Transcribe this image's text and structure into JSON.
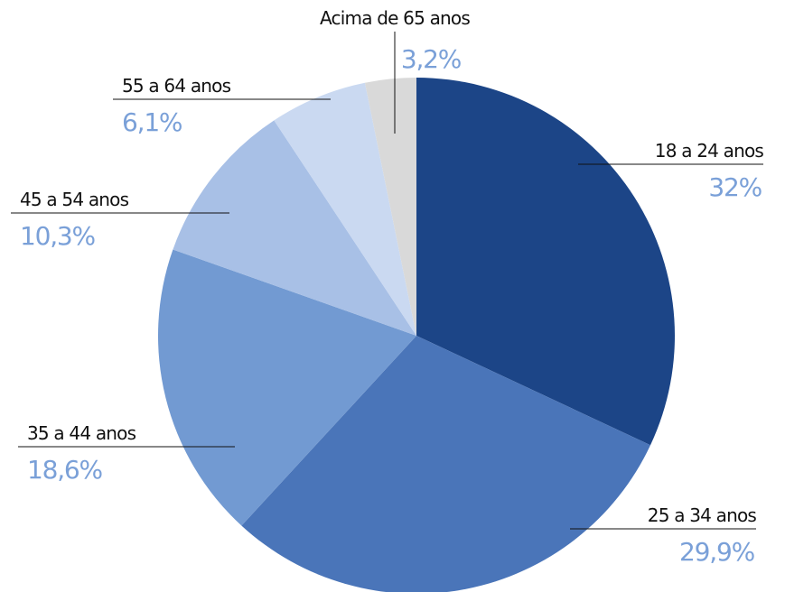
{
  "chart_data": {
    "type": "pie",
    "start": "12 o'clock",
    "direction": "clockwise",
    "label_color": "#111111",
    "value_color": "#7aa0d8",
    "slices": [
      {
        "label": "18 a 24 anos",
        "value": 32.0,
        "value_text": "32%",
        "color": "#1c4587"
      },
      {
        "label": "25 a 34 anos",
        "value": 29.9,
        "value_text": "29,9%",
        "color": "#4a75b9"
      },
      {
        "label": "35 a 44 anos",
        "value": 18.6,
        "value_text": "18,6%",
        "color": "#729ad2"
      },
      {
        "label": "45 a 54 anos",
        "value": 10.3,
        "value_text": "10,3%",
        "color": "#a8c0e6"
      },
      {
        "label": "55 a 64 anos",
        "value": 6.1,
        "value_text": "6,1%",
        "color": "#cad9f1"
      },
      {
        "label": "Acima de 65 anos",
        "value": 3.2,
        "value_text": "3,2%",
        "color": "#d9d9d9"
      }
    ]
  }
}
